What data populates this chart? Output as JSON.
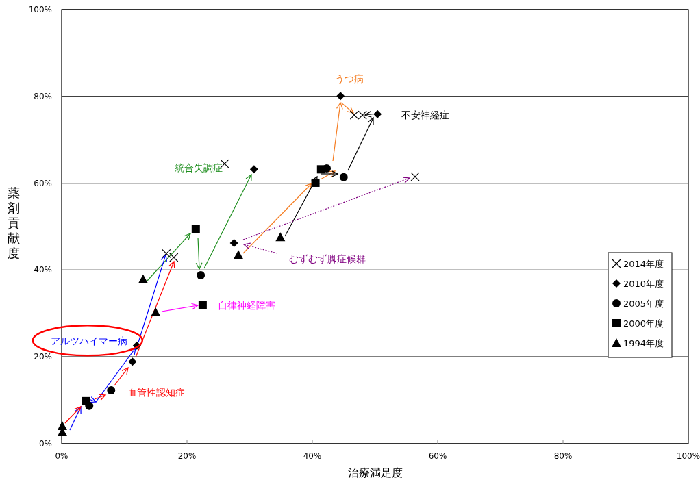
{
  "chart_data": {
    "type": "scatter",
    "xlabel": "治療満足度",
    "ylabel": "薬剤貢献度",
    "xlim": [
      0,
      100
    ],
    "ylim": [
      0,
      100
    ],
    "xticks": [
      {
        "value": 0,
        "label": "0%"
      },
      {
        "value": 20,
        "label": "20%"
      },
      {
        "value": 40,
        "label": "40%"
      },
      {
        "value": 60,
        "label": "60%"
      },
      {
        "value": 80,
        "label": "80%"
      },
      {
        "value": 100,
        "label": "100%"
      }
    ],
    "yticks": [
      {
        "value": 0,
        "label": "0%"
      },
      {
        "value": 20,
        "label": "20%"
      },
      {
        "value": 40,
        "label": "40%"
      },
      {
        "value": 60,
        "label": "60%"
      },
      {
        "value": 80,
        "label": "80%"
      },
      {
        "value": 100,
        "label": "100%"
      }
    ],
    "grid": "y",
    "legend": "bottom right",
    "series": [
      {
        "name": "2014年度",
        "marker": "cross",
        "color": "#000000",
        "x": [
          16.7,
          17.9,
          26.0,
          46.7,
          48.0,
          56.4
        ],
        "values": [
          43.8,
          42.9,
          64.5,
          75.7,
          75.7,
          61.5
        ]
      },
      {
        "name": "2010年度",
        "marker": "diamond",
        "color": "#000000",
        "x": [
          44.5,
          50.4,
          30.7,
          27.5,
          12.0,
          11.3
        ],
        "values": [
          80.1,
          75.9,
          63.2,
          46.2,
          22.6,
          18.9
        ]
      },
      {
        "name": "2005年度",
        "marker": "circle",
        "color": "#000000",
        "x": [
          22.2,
          45.0,
          42.3,
          7.9,
          4.4
        ],
        "values": [
          38.8,
          61.4,
          63.4,
          12.3,
          8.7
        ]
      },
      {
        "name": "2000年度",
        "marker": "square",
        "color": "#000000",
        "x": [
          21.4,
          22.5,
          40.5,
          41.4,
          3.9
        ],
        "values": [
          49.5,
          31.9,
          60.1,
          63.2,
          9.8
        ]
      },
      {
        "name": "1994年度",
        "marker": "triangle",
        "color": "#000000",
        "x": [
          13.0,
          15.0,
          28.2,
          34.9,
          0.1,
          0.1
        ],
        "values": [
          37.9,
          30.3,
          43.5,
          47.6,
          4.1,
          2.7
        ]
      }
    ],
    "annotations": [
      "統合失調症",
      "うつ病",
      "不安神経症",
      "むずむず脚症候群",
      {
        "text": "アルツハイマー病",
        "x": 16.7,
        "y": 43.8
      },
      "血管性認知症",
      "自律神経障害"
    ]
  }
}
